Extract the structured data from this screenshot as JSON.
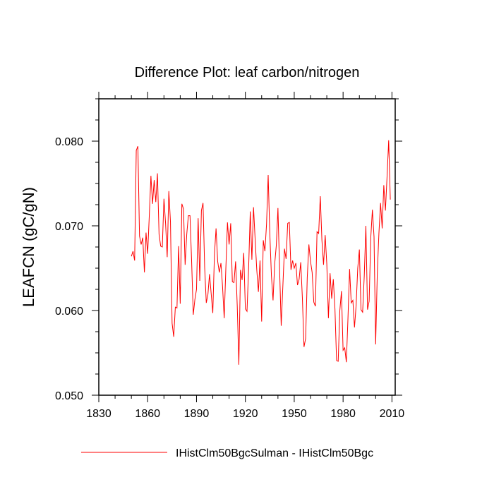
{
  "chart_data": {
    "type": "line",
    "title": "Difference Plot: leaf carbon/nitrogen",
    "xlabel": "",
    "ylabel": "LEAFCN  (gC/gN)",
    "xlim": [
      1830,
      2012
    ],
    "ylim": [
      0.05,
      0.085
    ],
    "x_ticks": [
      1830,
      1860,
      1890,
      1920,
      1950,
      1980,
      2010
    ],
    "x_tick_labels": [
      "1830",
      "1860",
      "1890",
      "1920",
      "1950",
      "1980",
      "2010"
    ],
    "y_ticks": [
      0.05,
      0.06,
      0.07,
      0.08
    ],
    "y_tick_labels": [
      "0.050",
      "0.060",
      "0.070",
      "0.080"
    ],
    "grid": false,
    "legend_position": "bottom",
    "colors": {
      "series": "#ff0000",
      "axes": "#000000"
    },
    "x_start": 1850,
    "series": [
      {
        "name": "IHistClm50BgcSulman - IHistClm50Bgc",
        "values": [
          0.0664,
          0.067,
          0.0659,
          0.0789,
          0.0794,
          0.0688,
          0.0678,
          0.0686,
          0.0645,
          0.0692,
          0.0667,
          0.0712,
          0.0759,
          0.0726,
          0.0754,
          0.0728,
          0.0762,
          0.069,
          0.0676,
          0.0675,
          0.0732,
          0.0703,
          0.0663,
          0.0741,
          0.0705,
          0.0585,
          0.0569,
          0.0604,
          0.0603,
          0.0676,
          0.0608,
          0.0726,
          0.072,
          0.0654,
          0.069,
          0.0712,
          0.0712,
          0.0658,
          0.0595,
          0.0613,
          0.0625,
          0.0709,
          0.0635,
          0.0718,
          0.0727,
          0.0651,
          0.0609,
          0.0619,
          0.0643,
          0.062,
          0.0597,
          0.0666,
          0.0697,
          0.0658,
          0.0645,
          0.0656,
          0.0628,
          0.0591,
          0.0649,
          0.0704,
          0.0678,
          0.0703,
          0.0634,
          0.0633,
          0.0658,
          0.0606,
          0.0536,
          0.0648,
          0.0636,
          0.0668,
          0.0602,
          0.0599,
          0.065,
          0.0717,
          0.066,
          0.0722,
          0.0684,
          0.0648,
          0.0622,
          0.0659,
          0.0587,
          0.0683,
          0.067,
          0.0702,
          0.076,
          0.0691,
          0.0641,
          0.0612,
          0.0655,
          0.0677,
          0.0721,
          0.065,
          0.0582,
          0.0628,
          0.0673,
          0.0661,
          0.0703,
          0.0704,
          0.0648,
          0.0659,
          0.065,
          0.0656,
          0.063,
          0.0637,
          0.0657,
          0.0615,
          0.0557,
          0.0567,
          0.0639,
          0.0678,
          0.0658,
          0.0645,
          0.061,
          0.0605,
          0.0693,
          0.0691,
          0.0735,
          0.0683,
          0.0654,
          0.0689,
          0.0655,
          0.0591,
          0.0644,
          0.0614,
          0.0637,
          0.0602,
          0.0541,
          0.054,
          0.06,
          0.0623,
          0.0553,
          0.0556,
          0.0539,
          0.0591,
          0.0649,
          0.0609,
          0.0612,
          0.058,
          0.0606,
          0.065,
          0.0672,
          0.0601,
          0.0598,
          0.0641,
          0.07,
          0.0601,
          0.0611,
          0.0686,
          0.0719,
          0.0687,
          0.056,
          0.0644,
          0.0691,
          0.0727,
          0.0697,
          0.0748,
          0.0718,
          0.0758,
          0.0801,
          0.0731
        ]
      }
    ]
  }
}
